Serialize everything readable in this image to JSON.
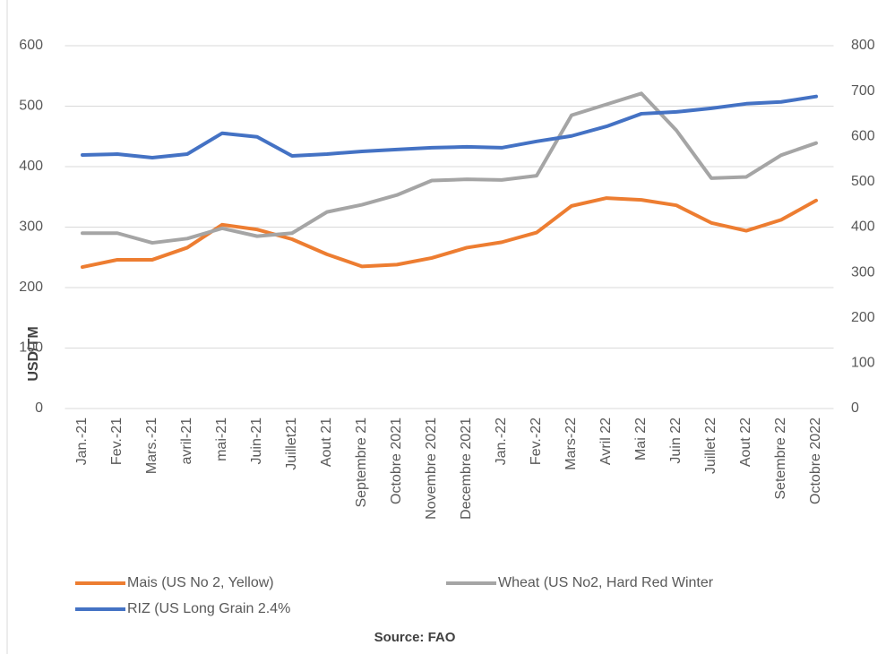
{
  "chart_data": {
    "type": "line",
    "y_label": "USD/TM",
    "source": "Source:  FAO",
    "categories": [
      "Jan.-21",
      "Fev.-21",
      "Mars.-21",
      "avril-21",
      "mai-21",
      "Juin-21",
      "Juillet21",
      "Aout 21",
      "Septembre 21",
      "Octobre 2021",
      "Novembre 2021",
      "Decembre 2021",
      "Jan.-22",
      "Fev.-22",
      "Mars-22",
      "Avril 22",
      "Mai 22",
      "Juin 22",
      "Juillet 22",
      "Aout 22",
      "Setembre 22",
      "Octobre 2022"
    ],
    "series": [
      {
        "name": "Mais (US No 2, Yellow)",
        "color": "#ed7d31",
        "values": [
          234,
          246,
          246,
          266,
          304,
          296,
          280,
          255,
          235,
          238,
          249,
          266,
          275,
          291,
          335,
          348,
          345,
          336,
          307,
          294,
          312,
          344
        ]
      },
      {
        "name": "Wheat (US No2, Hard Red Winter",
        "color": "#a5a5a5",
        "values": [
          290,
          290,
          274,
          281,
          298,
          285,
          290,
          325,
          337,
          353,
          377,
          379,
          378,
          385,
          485,
          503,
          521,
          460,
          381,
          383,
          419,
          439
        ]
      },
      {
        "name": "RIZ (US Long Grain 2.4%",
        "color": "#4472c4",
        "axis": "y2",
        "values": [
          559,
          561,
          553,
          561,
          607,
          599,
          557,
          561,
          567,
          571,
          575,
          577,
          575,
          589,
          601,
          622,
          650,
          654,
          662,
          672,
          676,
          688
        ]
      }
    ],
    "ylim": [
      0,
      600
    ],
    "yticks": [
      0,
      100,
      200,
      300,
      400,
      500,
      600
    ],
    "y2lim": [
      0,
      800
    ],
    "y2ticks": [
      0,
      100,
      200,
      300,
      400,
      500,
      600,
      700,
      800
    ],
    "grid": true
  }
}
